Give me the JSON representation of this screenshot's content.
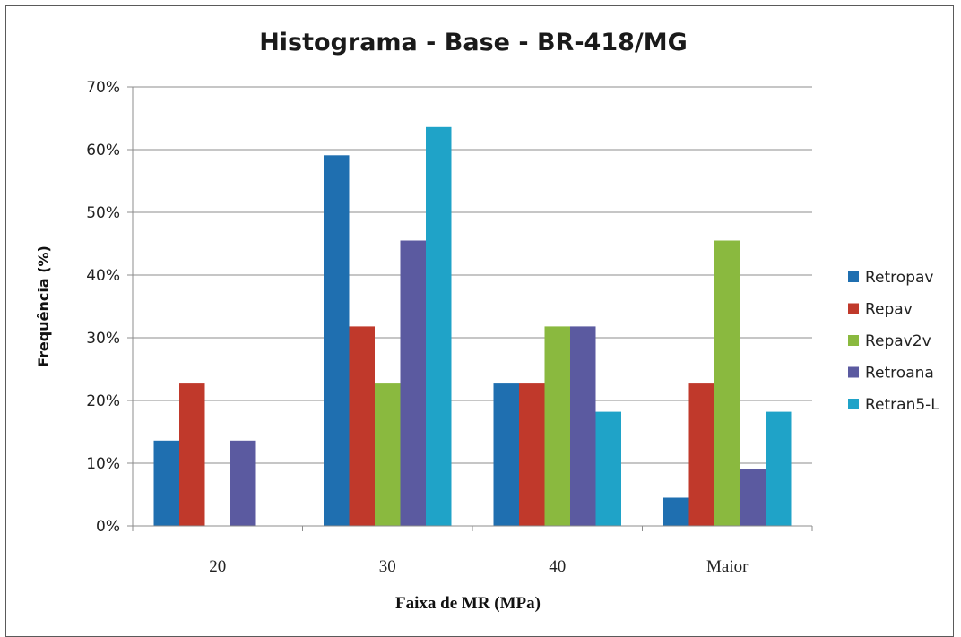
{
  "chart_data": {
    "type": "bar",
    "title": "Histograma - Base - BR-418/MG",
    "xlabel": "Faixa de MR (MPa)",
    "ylabel": "Frequência (%)",
    "categories": [
      "20",
      "30",
      "40",
      "Maior"
    ],
    "ylim": [
      0,
      70
    ],
    "yticks": [
      0,
      10,
      20,
      30,
      40,
      50,
      60,
      70
    ],
    "ytick_labels": [
      "0%",
      "10%",
      "20%",
      "30%",
      "40%",
      "50%",
      "60%",
      "70%"
    ],
    "grid": true,
    "legend_position": "right",
    "series": [
      {
        "name": "Retropav",
        "color": "#1f6fb0",
        "values": [
          13.6,
          59.1,
          22.7,
          4.5
        ]
      },
      {
        "name": "Repav",
        "color": "#c0392b",
        "values": [
          22.7,
          31.8,
          22.7,
          22.7
        ]
      },
      {
        "name": "Repav2v",
        "color": "#8ab93f",
        "values": [
          0,
          22.7,
          31.8,
          45.5
        ]
      },
      {
        "name": "Retroana",
        "color": "#5b5aa0",
        "values": [
          13.6,
          45.5,
          31.8,
          9.1
        ]
      },
      {
        "name": "Retran5-L",
        "color": "#1fa3c8",
        "values": [
          0,
          63.6,
          18.2,
          18.2
        ]
      }
    ]
  }
}
